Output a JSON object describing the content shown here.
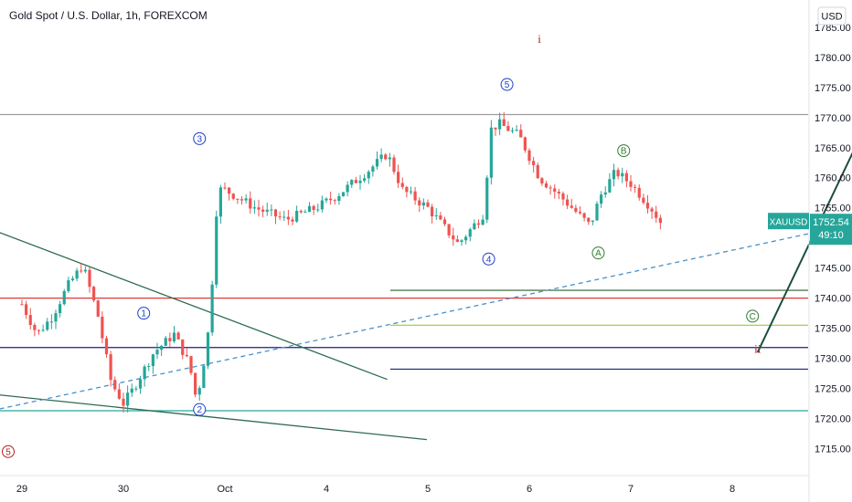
{
  "chart_data": {
    "type": "candlestick",
    "title": "Gold Spot / U.S. Dollar, 1h, FOREXCOM",
    "currency_badge": "USD",
    "price_tag": {
      "symbol": "XAUUSD",
      "price": "1752.54",
      "countdown": "49:10"
    },
    "y_ticks": [
      "1785.00",
      "1780.00",
      "1775.00",
      "1770.00",
      "1765.00",
      "1760.00",
      "1755.00",
      "1750.00",
      "1745.00",
      "1740.00",
      "1735.00",
      "1730.00",
      "1725.00",
      "1720.00",
      "1715.00"
    ],
    "x_ticks": [
      "29",
      "30",
      "Oct",
      "4",
      "5",
      "6",
      "7",
      "8"
    ],
    "ylim": [
      1712.5,
      1786.8
    ],
    "grid": false,
    "colors": {
      "up": "#26a69a",
      "down": "#ef5350",
      "tag": "#26a69a"
    },
    "series": [
      {
        "name": "",
        "path": [
          [
            0,
            1739
          ],
          [
            0.15,
            1734
          ],
          [
            0.3,
            1737
          ],
          [
            0.45,
            1742
          ],
          [
            0.6,
            1745.5
          ],
          [
            0.75,
            1737
          ],
          [
            0.88,
            1726
          ],
          [
            1.0,
            1722.5
          ],
          [
            1.1,
            1725
          ],
          [
            1.3,
            1731
          ],
          [
            1.5,
            1734
          ],
          [
            1.65,
            1729
          ],
          [
            1.72,
            1723
          ],
          [
            1.78,
            1728
          ],
          [
            1.85,
            1736
          ],
          [
            1.93,
            1758
          ],
          [
            2.0,
            1758
          ],
          [
            2.3,
            1755
          ],
          [
            2.6,
            1753
          ],
          [
            2.9,
            1755
          ],
          [
            3.1,
            1757
          ],
          [
            3.4,
            1761
          ],
          [
            3.6,
            1764
          ],
          [
            3.75,
            1758
          ],
          [
            4.0,
            1755
          ],
          [
            4.3,
            1749
          ],
          [
            4.4,
            1751
          ],
          [
            4.55,
            1754
          ],
          [
            4.62,
            1768
          ],
          [
            4.7,
            1769
          ],
          [
            4.9,
            1767
          ],
          [
            5.1,
            1760
          ],
          [
            5.3,
            1757
          ],
          [
            5.6,
            1752
          ],
          [
            5.7,
            1757
          ],
          [
            5.85,
            1761
          ],
          [
            6.0,
            1759
          ],
          [
            6.2,
            1755
          ],
          [
            6.3,
            1752.5
          ]
        ]
      }
    ],
    "annotations": {
      "wave_labels": [
        {
          "text": "5",
          "x": -0.2,
          "y": 1714.5,
          "color": "#b22222"
        },
        {
          "text": "1",
          "x": 1.2,
          "y": 1737.5,
          "color": "#1e40c8"
        },
        {
          "text": "2",
          "x": 1.75,
          "y": 1721.5,
          "color": "#1e40c8"
        },
        {
          "text": "3",
          "x": 1.75,
          "y": 1766.5,
          "color": "#1e40c8"
        },
        {
          "text": "4",
          "x": 4.6,
          "y": 1746.5,
          "color": "#1e40c8"
        },
        {
          "text": "5",
          "x": 4.78,
          "y": 1775.5,
          "color": "#1e40c8"
        },
        {
          "text": "A",
          "x": 5.68,
          "y": 1747.5,
          "color": "#2e7d32"
        },
        {
          "text": "B",
          "x": 5.93,
          "y": 1764.5,
          "color": "#2e7d32"
        },
        {
          "text": "C",
          "x": 7.2,
          "y": 1737,
          "color": "#2e7d32"
        }
      ],
      "roman_labels": [
        {
          "text": "i",
          "x": 5.1,
          "y": 1783,
          "color": "#b22222"
        },
        {
          "text": "ii",
          "x": 7.25,
          "y": 1731.5,
          "color": "#b22222"
        }
      ],
      "hlines": [
        {
          "y": 1770.5,
          "x0": -0.3,
          "x1": 8.8,
          "color": "#9e9e9e"
        },
        {
          "y": 1740.0,
          "x0": -0.3,
          "x1": 8.8,
          "color": "#e53935"
        },
        {
          "y": 1731.8,
          "x0": -0.3,
          "x1": 8.8,
          "color": "#1a237e"
        },
        {
          "y": 1721.3,
          "x0": -0.3,
          "x1": 8.8,
          "color": "#26a69a"
        },
        {
          "y": 1741.3,
          "x0": 3.63,
          "x1": 8.8,
          "color": "#2e5e2e"
        },
        {
          "y": 1735.5,
          "x0": 3.63,
          "x1": 8.8,
          "color": "#9acd32"
        },
        {
          "y": 1728.2,
          "x0": 3.63,
          "x1": 8.8,
          "color": "#1a237e"
        }
      ],
      "trendlines": [
        {
          "x0": -0.55,
          "y0": 1753,
          "x1": 3.6,
          "y1": 1726.5,
          "color": "#2e6b4f",
          "dash": false
        },
        {
          "x0": -0.55,
          "y0": 1724.5,
          "x1": 3.99,
          "y1": 1716.5,
          "color": "#2e6b4f",
          "dash": false
        },
        {
          "x0": -0.3,
          "y0": 1721.3,
          "x1": 8.6,
          "y1": 1753.8,
          "color": "#4a90c8",
          "dash": true
        }
      ],
      "arrow": {
        "x0": 7.25,
        "y0": 1731,
        "x1": 8.55,
        "y1": 1777,
        "color": "#1b4d3e"
      }
    }
  }
}
